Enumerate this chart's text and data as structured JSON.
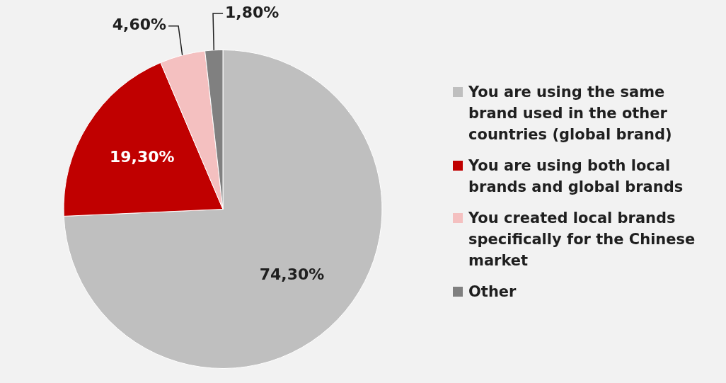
{
  "chart_data": {
    "type": "pie",
    "categories": [
      "You are using the same brand used in the other countries (global brand)",
      "You are using both local brands and global brands",
      "You created local brands specifically for the Chinese market",
      "Other"
    ],
    "values": [
      74.3,
      19.3,
      4.6,
      1.8
    ],
    "colors": [
      "#bfbfbf",
      "#c00000",
      "#f4c0c0",
      "#808080"
    ],
    "value_labels": [
      "74,30%",
      "19,30%",
      "4,60%",
      "1,80%"
    ],
    "legend": "right"
  }
}
